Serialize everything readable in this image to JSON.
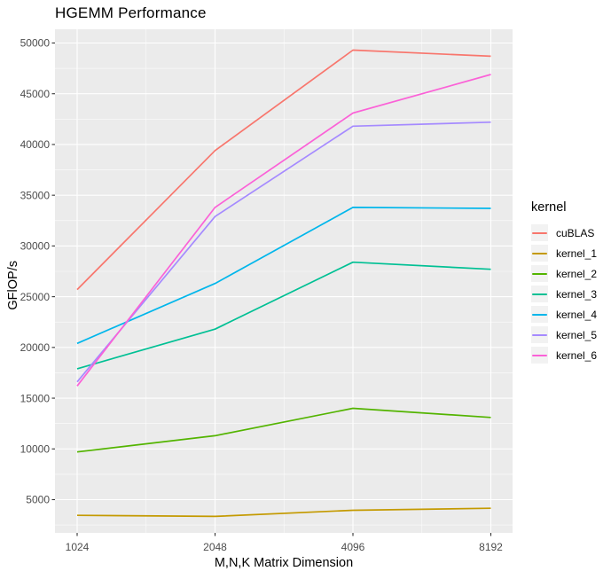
{
  "chart_data": {
    "type": "line",
    "title": "HGEMM Performance",
    "xlabel": "M,N,K Matrix Dimension",
    "ylabel": "GFlOP/s",
    "legend_title": "kernel",
    "legend_position": "right",
    "x_scale": "log2",
    "categories": [
      1024,
      2048,
      4096,
      8192
    ],
    "x_tick_labels": [
      "1024",
      "2048",
      "4096",
      "8192"
    ],
    "y_ticks": [
      5000,
      10000,
      15000,
      20000,
      25000,
      30000,
      35000,
      40000,
      45000,
      50000
    ],
    "ylim": [
      1800,
      51400
    ],
    "grid": "white major gridlines at 5000 steps, minor at 2500 steps, on gray panel",
    "panel_bg": "#EBEBEB",
    "legend_key_bg": "#F2F2F2",
    "tick_label_color": "#4D4D4D",
    "series": [
      {
        "name": "cuBLAS",
        "color": "#F8766D",
        "values": [
          25700,
          39400,
          49300,
          48700
        ]
      },
      {
        "name": "kernel_1",
        "color": "#C49A00",
        "values": [
          3450,
          3350,
          3950,
          4150
        ]
      },
      {
        "name": "kernel_2",
        "color": "#53B400",
        "values": [
          9700,
          11300,
          14000,
          13100
        ]
      },
      {
        "name": "kernel_3",
        "color": "#00C094",
        "values": [
          17900,
          21800,
          28400,
          27700
        ]
      },
      {
        "name": "kernel_4",
        "color": "#00B6EB",
        "values": [
          20400,
          26300,
          33800,
          33700
        ]
      },
      {
        "name": "kernel_5",
        "color": "#A58AFF",
        "values": [
          16600,
          32900,
          41800,
          42200
        ]
      },
      {
        "name": "kernel_6",
        "color": "#FB61D7",
        "values": [
          16200,
          33800,
          43100,
          46900
        ]
      }
    ]
  }
}
